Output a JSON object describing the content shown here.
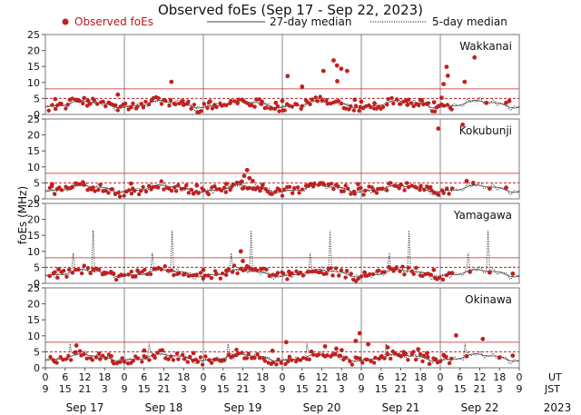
{
  "chart_data": {
    "type": "scatter",
    "title": "Observed foEs (Sep 17 - Sep 22, 2023)",
    "legend": {
      "placement": "top",
      "observed": "Observed foEs",
      "median27": "27-day median",
      "median5": "5-day median"
    },
    "ylabel": "foEs (MHz)",
    "ylim": [
      0,
      25
    ],
    "yticks": [
      0,
      5,
      10,
      15,
      20,
      25
    ],
    "xlim": [
      0,
      144
    ],
    "hour_ticks": [
      "0",
      "6",
      "12",
      "18",
      "0",
      "6",
      "12",
      "18",
      "0",
      "6",
      "12",
      "18",
      "0",
      "6",
      "12",
      "18",
      "0",
      "6",
      "12",
      "18",
      "0",
      "6",
      "12",
      "18",
      "0"
    ],
    "jst_ticks": [
      "9",
      "15",
      "21",
      "3",
      "9",
      "15",
      "21",
      "3",
      "9",
      "15",
      "21",
      "3",
      "9",
      "15",
      "21",
      "3",
      "9",
      "15",
      "21",
      "3",
      "9",
      "15",
      "21",
      "3",
      "9"
    ],
    "ut_label": "UT",
    "jst_label": "JST",
    "days": [
      "Sep 17",
      "Sep 18",
      "Sep 19",
      "Sep 20",
      "Sep 21",
      "Sep 22"
    ],
    "year": "2023",
    "colors": {
      "observed": "#c0201f",
      "median27": "#444444",
      "median5": "#222222",
      "threshold": "#c0201f",
      "grid": "#888888"
    },
    "panels": [
      {
        "station": "Wakkanai",
        "thresholds": [
          5,
          8
        ],
        "observed_count": 160,
        "outliers": [
          [
            3,
            4.8
          ],
          [
            13,
            4.2
          ],
          [
            22,
            6.2
          ],
          [
            38.3,
            10.2
          ],
          [
            42,
            3.0
          ],
          [
            50,
            4.1
          ],
          [
            60,
            4.4
          ],
          [
            65.8,
            4.0
          ],
          [
            70,
            3.6
          ],
          [
            72,
            4.2
          ],
          [
            73.6,
            12.0
          ],
          [
            78,
            8.7
          ],
          [
            84.5,
            13.6
          ],
          [
            87.6,
            16.9
          ],
          [
            88.6,
            15.3
          ],
          [
            89.9,
            14.3
          ],
          [
            88.7,
            10.4
          ],
          [
            91.7,
            13.6
          ],
          [
            94,
            4.6
          ],
          [
            96,
            4.0
          ],
          [
            100,
            3.5
          ],
          [
            110,
            3.0
          ],
          [
            114,
            4.5
          ],
          [
            118.1,
            3.8
          ],
          [
            120.4,
            5.2
          ],
          [
            121,
            9.5
          ],
          [
            121.9,
            14.9
          ],
          [
            122.3,
            12.1
          ],
          [
            127.4,
            10.2
          ],
          [
            130.4,
            17.8
          ],
          [
            134,
            3.6
          ],
          [
            140,
            3.6
          ],
          [
            141,
            4.2
          ]
        ]
      },
      {
        "station": "Kokubunji",
        "thresholds": [
          5,
          8
        ],
        "observed_count": 160,
        "outliers": [
          [
            2,
            4.6
          ],
          [
            14,
            3.0
          ],
          [
            26,
            4.8
          ],
          [
            46,
            4.2
          ],
          [
            55,
            4.7
          ],
          [
            59.7,
            5.4
          ],
          [
            60.4,
            7.2
          ],
          [
            61.3,
            9.0
          ],
          [
            62,
            6.5
          ],
          [
            63,
            5.6
          ],
          [
            66,
            4.4
          ],
          [
            80,
            4.1
          ],
          [
            95,
            4.6
          ],
          [
            108,
            4.4
          ],
          [
            117,
            3.6
          ],
          [
            119.4,
            22.0
          ],
          [
            126.8,
            23.2
          ],
          [
            128,
            5.6
          ],
          [
            130,
            5.0
          ],
          [
            135,
            3.2
          ],
          [
            140,
            3.5
          ]
        ]
      },
      {
        "station": "Yamagawa",
        "thresholds": [
          5,
          8
        ],
        "observed_count": 140,
        "outliers": [
          [
            4,
            4.4
          ],
          [
            18,
            3.0
          ],
          [
            20,
            3.4
          ],
          [
            28,
            4.0
          ],
          [
            48,
            4.2
          ],
          [
            55,
            4.0
          ],
          [
            59.4,
            10.0
          ],
          [
            60,
            7.0
          ],
          [
            61.3,
            5.3
          ],
          [
            74,
            3.6
          ],
          [
            86,
            4.6
          ],
          [
            97,
            3.4
          ],
          [
            106,
            4.4
          ],
          [
            118,
            4.2
          ],
          [
            129,
            3.6
          ],
          [
            135,
            3.4
          ],
          [
            142,
            3.0
          ]
        ]
      },
      {
        "station": "Okinawa",
        "thresholds": [
          5,
          8
        ],
        "observed_count": 150,
        "outliers": [
          [
            9.4,
            7.0
          ],
          [
            20,
            3.6
          ],
          [
            30,
            5.4
          ],
          [
            45,
            4.6
          ],
          [
            58,
            4.0
          ],
          [
            69,
            5.3
          ],
          [
            73.2,
            8.0
          ],
          [
            85,
            6.7
          ],
          [
            88.4,
            6.0
          ],
          [
            90,
            5.5
          ],
          [
            94.3,
            8.4
          ],
          [
            95.5,
            10.8
          ],
          [
            98.1,
            7.4
          ],
          [
            102,
            3.4
          ],
          [
            104,
            6.4
          ],
          [
            109,
            4.2
          ],
          [
            113.3,
            5.8
          ],
          [
            116,
            4.6
          ],
          [
            121,
            4.0
          ],
          [
            124.8,
            10.1
          ],
          [
            128,
            3.6
          ],
          [
            132.9,
            9.0
          ],
          [
            138,
            3.2
          ],
          [
            142,
            3.8
          ]
        ]
      }
    ]
  }
}
